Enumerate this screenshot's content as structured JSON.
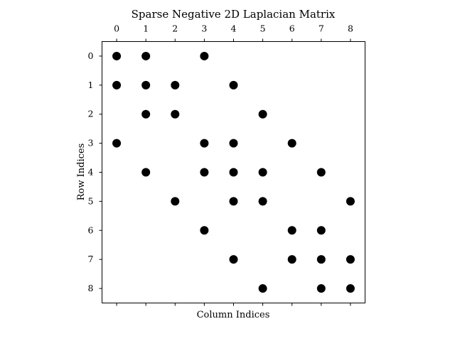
{
  "chart_data": {
    "type": "scatter",
    "title": "Sparse Negative 2D Laplacian Matrix",
    "xlabel": "Column Indices",
    "ylabel": "Row Indices",
    "x_ticks": [
      "0",
      "1",
      "2",
      "3",
      "4",
      "5",
      "6",
      "7",
      "8"
    ],
    "y_ticks": [
      "0",
      "1",
      "2",
      "3",
      "4",
      "5",
      "6",
      "7",
      "8"
    ],
    "xlim": [
      -0.5,
      8.5
    ],
    "ylim": [
      8.5,
      -0.5
    ],
    "x_tick_labels_position": "top",
    "grid": false,
    "legend": "none",
    "marker_color": "#000000",
    "points": [
      {
        "row": 0,
        "col": 0
      },
      {
        "row": 0,
        "col": 1
      },
      {
        "row": 0,
        "col": 3
      },
      {
        "row": 1,
        "col": 0
      },
      {
        "row": 1,
        "col": 1
      },
      {
        "row": 1,
        "col": 2
      },
      {
        "row": 1,
        "col": 4
      },
      {
        "row": 2,
        "col": 1
      },
      {
        "row": 2,
        "col": 2
      },
      {
        "row": 2,
        "col": 5
      },
      {
        "row": 3,
        "col": 0
      },
      {
        "row": 3,
        "col": 3
      },
      {
        "row": 3,
        "col": 4
      },
      {
        "row": 3,
        "col": 6
      },
      {
        "row": 4,
        "col": 1
      },
      {
        "row": 4,
        "col": 3
      },
      {
        "row": 4,
        "col": 4
      },
      {
        "row": 4,
        "col": 5
      },
      {
        "row": 4,
        "col": 7
      },
      {
        "row": 5,
        "col": 2
      },
      {
        "row": 5,
        "col": 4
      },
      {
        "row": 5,
        "col": 5
      },
      {
        "row": 5,
        "col": 8
      },
      {
        "row": 6,
        "col": 3
      },
      {
        "row": 6,
        "col": 6
      },
      {
        "row": 6,
        "col": 7
      },
      {
        "row": 7,
        "col": 4
      },
      {
        "row": 7,
        "col": 6
      },
      {
        "row": 7,
        "col": 7
      },
      {
        "row": 7,
        "col": 8
      },
      {
        "row": 8,
        "col": 5
      },
      {
        "row": 8,
        "col": 7
      },
      {
        "row": 8,
        "col": 8
      }
    ]
  }
}
